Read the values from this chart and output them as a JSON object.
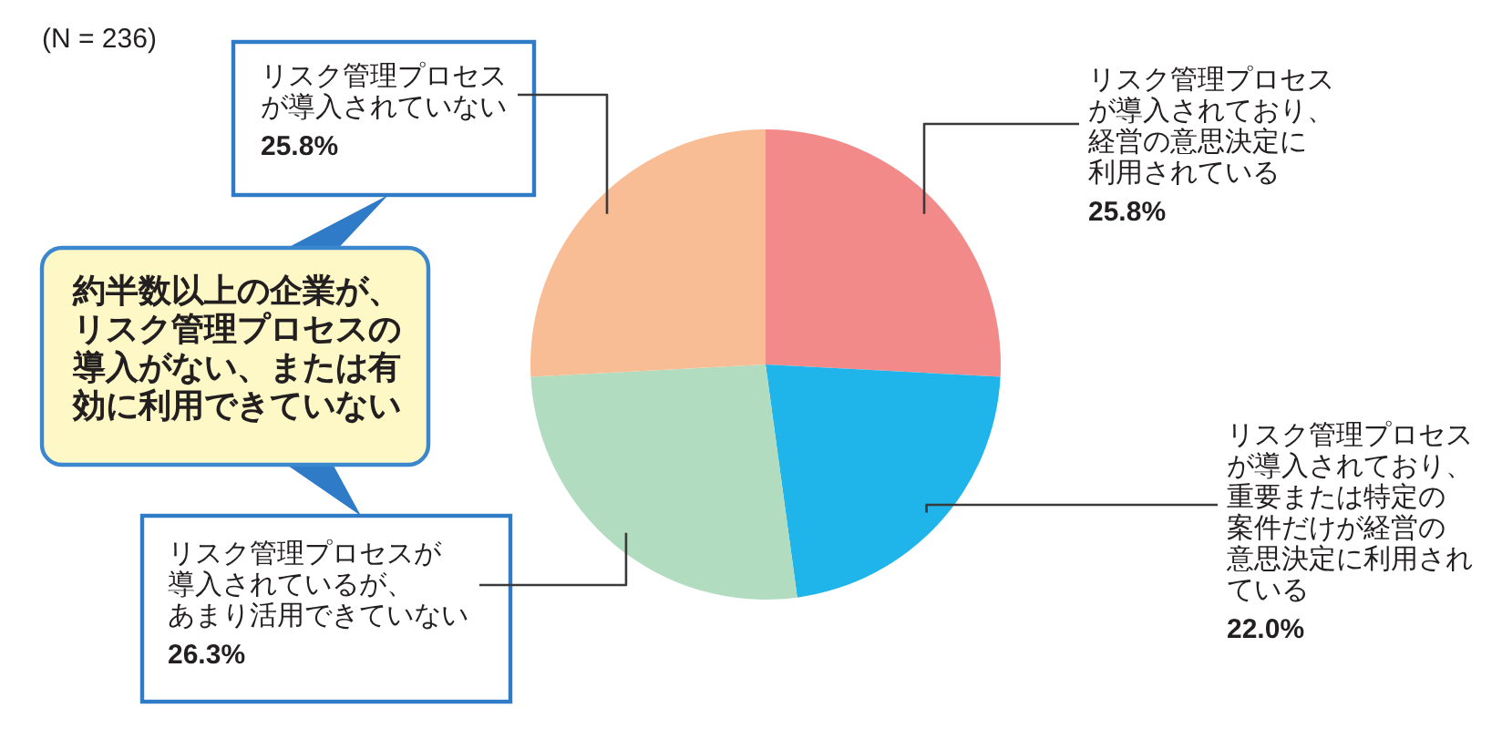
{
  "chart_data": {
    "type": "pie",
    "categories": [
      "リスク管理プロセスが導入されており、経営の意思決定に利用されている",
      "リスク管理プロセスが導入されており、重要または特定の案件だけが経営の意思決定に利用されている",
      "リスク管理プロセスが導入されているが、あまり活用できていない",
      "リスク管理プロセスが導入されていない"
    ],
    "values": [
      25.8,
      22.0,
      26.3,
      25.8
    ],
    "value_labels": [
      "25.8%",
      "22.0%",
      "26.3%",
      "25.8%"
    ],
    "colors": [
      "#f28a8a",
      "#20b5ea",
      "#b2dcc0",
      "#f9bd95"
    ],
    "annotations": [
      "(N = 236)",
      "約半数以上の企業が、リスク管理プロセスの導入がない、または有効に利用できていない"
    ]
  }
}
